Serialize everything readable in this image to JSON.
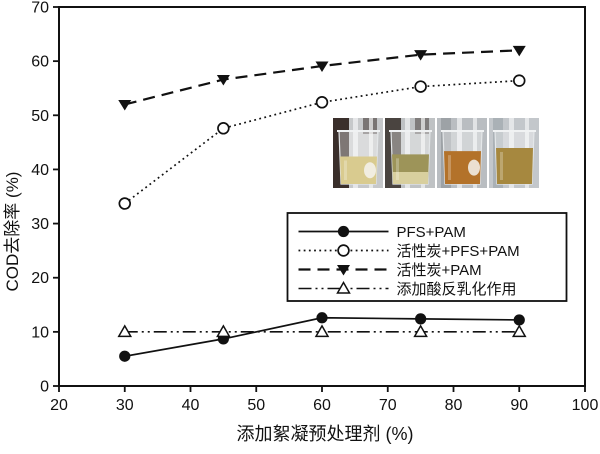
{
  "figure": {
    "type": "scientific-line-chart",
    "background": "#ffffff",
    "ink_color": "#111111"
  },
  "chart_data": {
    "type": "line",
    "x": [
      30,
      45,
      60,
      75,
      90
    ],
    "series": [
      {
        "name": "PFS+PAM",
        "values": [
          5.5,
          8.7,
          12.6,
          12.4,
          12.2
        ],
        "line_style": "solid",
        "marker": "circle-filled"
      },
      {
        "name": "活性炭+PFS+PAM",
        "values": [
          33.7,
          47.6,
          52.4,
          55.3,
          56.4
        ],
        "line_style": "dotted",
        "marker": "circle-open"
      },
      {
        "name": "活性炭+PAM",
        "values": [
          52.0,
          56.6,
          59.1,
          61.2,
          62.0
        ],
        "line_style": "dashed",
        "marker": "triangle-down-filled"
      },
      {
        "name": "添加酸反乳化作用",
        "values": [
          10.0,
          10.0,
          10.0,
          10.0,
          10.0
        ],
        "line_style": "dashdotdot",
        "marker": "triangle-up-open"
      }
    ],
    "xlabel": "添加絮凝预处理剂 (%)",
    "ylabel": "COD去除率 (%)",
    "xlim": [
      20,
      100
    ],
    "ylim": [
      0,
      70
    ],
    "x_ticks": [
      20,
      30,
      40,
      50,
      60,
      70,
      80,
      90,
      100
    ],
    "y_ticks": [
      0,
      10,
      20,
      30,
      40,
      50,
      60,
      70
    ],
    "grid": false,
    "legend_position": "inside-lower-right",
    "title": ""
  },
  "inset_photos": {
    "description": "four beakers with treated oily wastewater samples",
    "panels": [
      {
        "name": "beaker-photo-1",
        "bg": "#c6c8ca",
        "dark": "#3a2f2b",
        "liquid": "#d9cb8f",
        "sediment": "",
        "fill_level": 0.52
      },
      {
        "name": "beaker-photo-2",
        "bg": "#bfc2c4",
        "dark": "#4a4440",
        "liquid": "#9d9459",
        "sediment": "#d8cf9e",
        "fill_level": 0.56
      },
      {
        "name": "beaker-photo-3",
        "bg": "#b9bdc1",
        "dark": "#8a9094",
        "liquid": "#b3722a",
        "sediment": "",
        "fill_level": 0.62
      },
      {
        "name": "beaker-photo-4",
        "bg": "#c3c7cb",
        "dark": "#9aa2a8",
        "liquid": "#a6883f",
        "sediment": "",
        "fill_level": 0.68
      }
    ]
  }
}
